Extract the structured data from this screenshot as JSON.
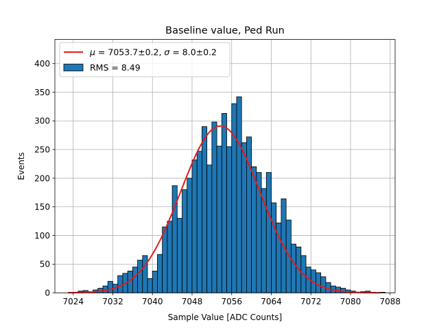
{
  "chart_data": {
    "type": "bar",
    "title": "Baseline value, Ped Run",
    "xlabel": "Sample Value [ADC Counts]",
    "ylabel": "Events",
    "xlim": [
      7020.3,
      7089.0
    ],
    "ylim": [
      0,
      442
    ],
    "xticks": [
      7024,
      7032,
      7040,
      7048,
      7056,
      7064,
      7072,
      7080,
      7088
    ],
    "yticks": [
      0,
      50,
      100,
      150,
      200,
      250,
      300,
      350,
      400
    ],
    "grid": true,
    "legend_position": "top-left",
    "bin_width": 1,
    "bin_start": 7023,
    "values": [
      1,
      1,
      3,
      4,
      2,
      5,
      8,
      12,
      20,
      15,
      30,
      34,
      38,
      45,
      57,
      65,
      25,
      38,
      67,
      115,
      125,
      187,
      130,
      180,
      200,
      232,
      247,
      290,
      223,
      298,
      256,
      313,
      255,
      330,
      342,
      262,
      272,
      220,
      210,
      182,
      210,
      157,
      122,
      164,
      127,
      85,
      80,
      65,
      45,
      40,
      35,
      28,
      18,
      12,
      10,
      8,
      5,
      3,
      0,
      2,
      3,
      1,
      0,
      1
    ],
    "series": [
      {
        "name": "RMS = 8.49",
        "kind": "histogram",
        "color": "#1f77b4",
        "edgecolor": "#000000"
      },
      {
        "name": "$\\mu = 7053.7\\pm0.2$, $\\sigma = 8.0\\pm0.2$",
        "kind": "gaussian-fit",
        "color": "#e41a1c",
        "mu": 7053.7,
        "sigma": 8.0,
        "amplitude": 291,
        "x_range": [
          7023,
          7086
        ]
      }
    ],
    "legend": {
      "fit_mu_value": "7053.7±0.2",
      "fit_sigma_value": "8.0±0.2",
      "hist_label": "RMS = 8.49"
    }
  }
}
